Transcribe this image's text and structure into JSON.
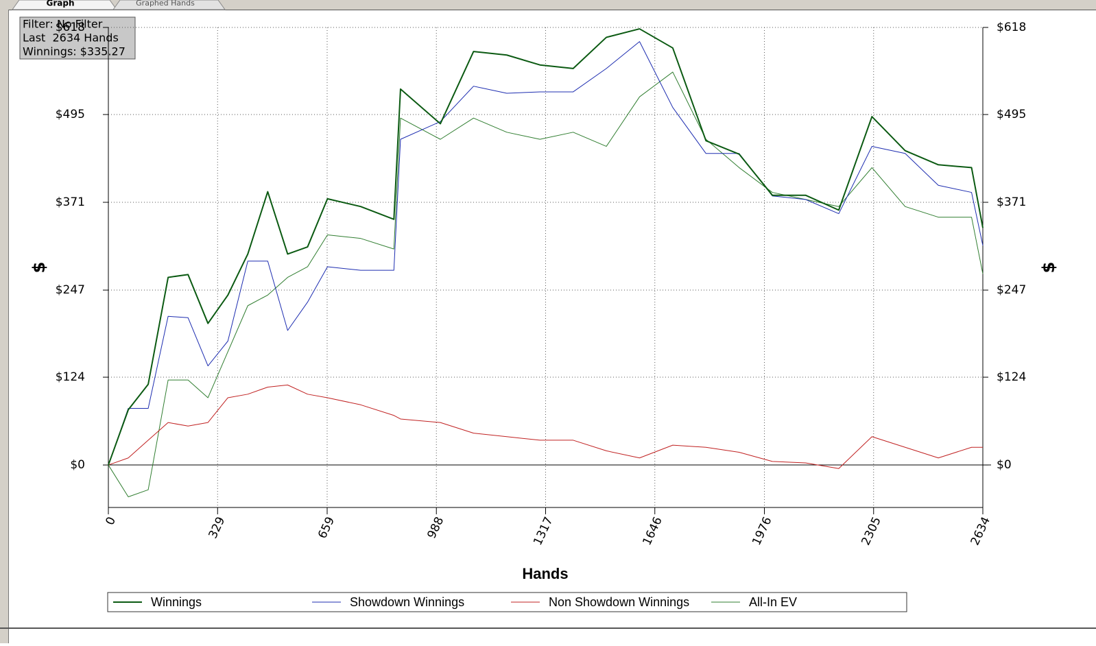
{
  "tabs": [
    "Graph",
    "Graphed Hands"
  ],
  "info_box": [
    "Filter: No Filter",
    "Last  2634 Hands",
    "Winnings: $335.27"
  ],
  "chart_data": {
    "type": "line",
    "x_label": "Hands",
    "y_label": "$",
    "x": [
      0,
      60,
      120,
      180,
      240,
      300,
      360,
      420,
      480,
      540,
      600,
      660,
      760,
      860,
      880,
      1000,
      1100,
      1200,
      1300,
      1400,
      1500,
      1600,
      1700,
      1800,
      1900,
      2000,
      2100,
      2200,
      2300,
      2400,
      2500,
      2600,
      2634
    ],
    "series": [
      {
        "name": "Winnings",
        "color": "#0b5a12",
        "width": 2,
        "values": [
          0,
          78,
          114,
          265,
          269,
          200,
          240,
          298,
          386,
          298,
          308,
          376,
          365,
          347,
          531,
          482,
          584,
          579,
          565,
          560,
          604,
          616,
          589,
          458,
          439,
          381,
          381,
          360,
          492,
          444,
          424,
          420,
          335
        ]
      },
      {
        "name": "Showdown Winnings",
        "color": "#1c2cb0",
        "width": 1,
        "values": [
          0,
          80,
          80,
          210,
          208,
          140,
          175,
          288,
          288,
          190,
          230,
          280,
          275,
          275,
          460,
          485,
          535,
          525,
          527,
          527,
          560,
          598,
          505,
          440,
          440,
          380,
          375,
          355,
          450,
          440,
          395,
          385,
          310
        ]
      },
      {
        "name": "Non Showdown Winnings",
        "color": "#c02020",
        "width": 1,
        "values": [
          0,
          10,
          35,
          60,
          55,
          60,
          95,
          100,
          110,
          113,
          100,
          95,
          85,
          70,
          65,
          60,
          45,
          40,
          35,
          35,
          20,
          10,
          28,
          25,
          18,
          5,
          3,
          -5,
          40,
          25,
          10,
          25,
          25
        ]
      },
      {
        "name": "All-In EV",
        "color": "#2f7d2f",
        "width": 1,
        "values": [
          0,
          -45,
          -35,
          120,
          120,
          95,
          160,
          225,
          240,
          265,
          280,
          325,
          320,
          305,
          490,
          460,
          490,
          470,
          460,
          470,
          450,
          520,
          555,
          460,
          420,
          385,
          375,
          365,
          420,
          365,
          350,
          350,
          270
        ]
      }
    ],
    "xlim": [
      0,
      2634
    ],
    "xticks": [
      0,
      329,
      659,
      988,
      1317,
      1646,
      1976,
      2305,
      2634
    ],
    "ylim": [
      -60,
      618
    ],
    "yticks": [
      {
        "value": 0,
        "label": "$0"
      },
      {
        "value": 124,
        "label": "$124"
      },
      {
        "value": 247,
        "label": "$247"
      },
      {
        "value": 371,
        "label": "$371"
      },
      {
        "value": 495,
        "label": "$495"
      },
      {
        "value": 618,
        "label": "$618"
      }
    ],
    "grid": true,
    "legend": "bottom"
  }
}
